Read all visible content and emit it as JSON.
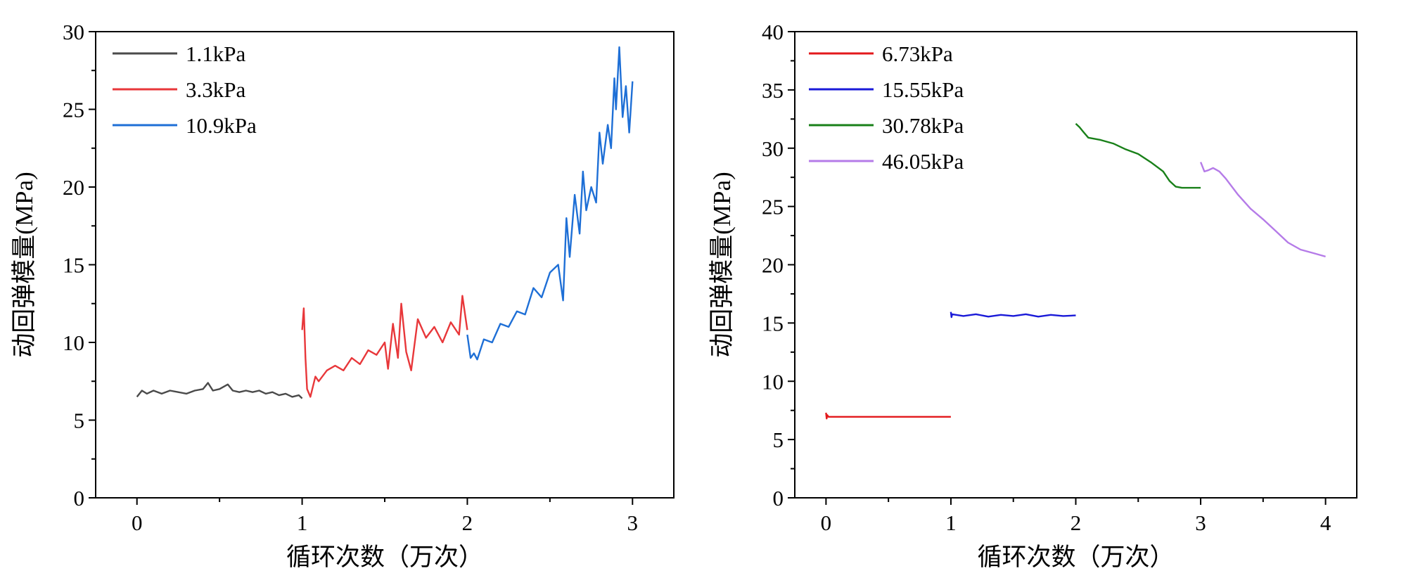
{
  "figure": {
    "panels": [
      "left",
      "right"
    ]
  },
  "chart_data": [
    {
      "id": "left",
      "type": "line",
      "xlabel": "循环次数（万次）",
      "ylabel": "动回弹模量(MPa)",
      "xlim": [
        -0.25,
        3.25
      ],
      "ylim": [
        0,
        30
      ],
      "xticks": [
        0,
        1,
        2,
        3
      ],
      "yticks": [
        0,
        5,
        10,
        15,
        20,
        25,
        30
      ],
      "grid": false,
      "legend_position": "top-left",
      "series": [
        {
          "name": "1.1kPa",
          "color": "#4a4a4a",
          "x": [
            0,
            0.03,
            0.06,
            0.1,
            0.15,
            0.2,
            0.25,
            0.3,
            0.35,
            0.4,
            0.43,
            0.46,
            0.5,
            0.55,
            0.58,
            0.62,
            0.66,
            0.7,
            0.74,
            0.78,
            0.82,
            0.86,
            0.9,
            0.94,
            0.98,
            1.0
          ],
          "y": [
            6.5,
            6.9,
            6.7,
            6.9,
            6.7,
            6.9,
            6.8,
            6.7,
            6.9,
            7.0,
            7.4,
            6.9,
            7.0,
            7.3,
            6.9,
            6.8,
            6.9,
            6.8,
            6.9,
            6.7,
            6.8,
            6.6,
            6.7,
            6.5,
            6.6,
            6.4
          ]
        },
        {
          "name": "3.3kPa",
          "color": "#e8373a",
          "x": [
            1.0,
            1.01,
            1.02,
            1.03,
            1.05,
            1.08,
            1.1,
            1.15,
            1.2,
            1.25,
            1.3,
            1.35,
            1.4,
            1.45,
            1.5,
            1.52,
            1.55,
            1.58,
            1.6,
            1.63,
            1.66,
            1.7,
            1.75,
            1.8,
            1.85,
            1.9,
            1.95,
            1.97,
            2.0
          ],
          "y": [
            10.8,
            12.2,
            9.0,
            7.0,
            6.5,
            7.8,
            7.5,
            8.2,
            8.5,
            8.2,
            9.0,
            8.6,
            9.5,
            9.2,
            10.0,
            8.3,
            11.2,
            9.0,
            12.5,
            9.4,
            8.2,
            11.5,
            10.3,
            11.0,
            10.0,
            11.3,
            10.5,
            13.0,
            10.8
          ]
        },
        {
          "name": "10.9kPa",
          "color": "#1e6fd6",
          "x": [
            2.0,
            2.02,
            2.04,
            2.06,
            2.1,
            2.15,
            2.2,
            2.25,
            2.3,
            2.35,
            2.4,
            2.45,
            2.5,
            2.55,
            2.58,
            2.6,
            2.62,
            2.65,
            2.68,
            2.7,
            2.72,
            2.75,
            2.78,
            2.8,
            2.82,
            2.85,
            2.87,
            2.89,
            2.9,
            2.92,
            2.94,
            2.96,
            2.98,
            3.0
          ],
          "y": [
            10.5,
            9.0,
            9.3,
            8.9,
            10.2,
            10.0,
            11.2,
            11.0,
            12.0,
            11.8,
            13.5,
            12.9,
            14.5,
            15.0,
            12.7,
            18.0,
            15.5,
            19.5,
            17.0,
            21.0,
            18.5,
            20.0,
            19.0,
            23.5,
            21.5,
            24.0,
            22.5,
            27.0,
            25.0,
            29.0,
            24.5,
            26.5,
            23.5,
            26.8
          ]
        }
      ]
    },
    {
      "id": "right",
      "type": "line",
      "xlabel": "循环次数（万次）",
      "ylabel": "动回弹模量(MPa)",
      "xlim": [
        -0.25,
        4.25
      ],
      "ylim": [
        0,
        40
      ],
      "xticks": [
        0,
        1,
        2,
        3,
        4
      ],
      "yticks": [
        0,
        5,
        10,
        15,
        20,
        25,
        30,
        35,
        40
      ],
      "grid": false,
      "legend_position": "top-left",
      "series": [
        {
          "name": "6.73kPa",
          "color": "#e3191c",
          "x": [
            0,
            0.005,
            0.01,
            0.02,
            0.1,
            0.3,
            0.5,
            0.7,
            0.9,
            1.0
          ],
          "y": [
            7.3,
            6.8,
            7.1,
            6.95,
            6.95,
            6.95,
            6.95,
            6.95,
            6.95,
            6.95
          ]
        },
        {
          "name": "15.55kPa",
          "color": "#1a1ad8",
          "x": [
            1.0,
            1.005,
            1.01,
            1.1,
            1.2,
            1.3,
            1.4,
            1.5,
            1.6,
            1.7,
            1.8,
            1.9,
            2.0
          ],
          "y": [
            15.95,
            15.5,
            15.75,
            15.6,
            15.75,
            15.55,
            15.7,
            15.6,
            15.75,
            15.55,
            15.7,
            15.6,
            15.65
          ]
        },
        {
          "name": "30.78kPa",
          "color": "#198019",
          "x": [
            2.0,
            2.03,
            2.06,
            2.1,
            2.2,
            2.3,
            2.4,
            2.5,
            2.6,
            2.7,
            2.75,
            2.8,
            2.85,
            2.9,
            3.0
          ],
          "y": [
            32.1,
            31.8,
            31.4,
            30.9,
            30.7,
            30.4,
            29.9,
            29.5,
            28.8,
            28.0,
            27.2,
            26.7,
            26.6,
            26.6,
            26.6
          ]
        },
        {
          "name": "46.05kPa",
          "color": "#b57be8",
          "x": [
            3.0,
            3.03,
            3.06,
            3.1,
            3.15,
            3.2,
            3.3,
            3.4,
            3.5,
            3.6,
            3.7,
            3.8,
            3.9,
            4.0
          ],
          "y": [
            28.8,
            28.0,
            28.1,
            28.3,
            28.0,
            27.4,
            26.0,
            24.8,
            23.9,
            22.9,
            21.9,
            21.3,
            21.0,
            20.7
          ]
        }
      ]
    }
  ]
}
